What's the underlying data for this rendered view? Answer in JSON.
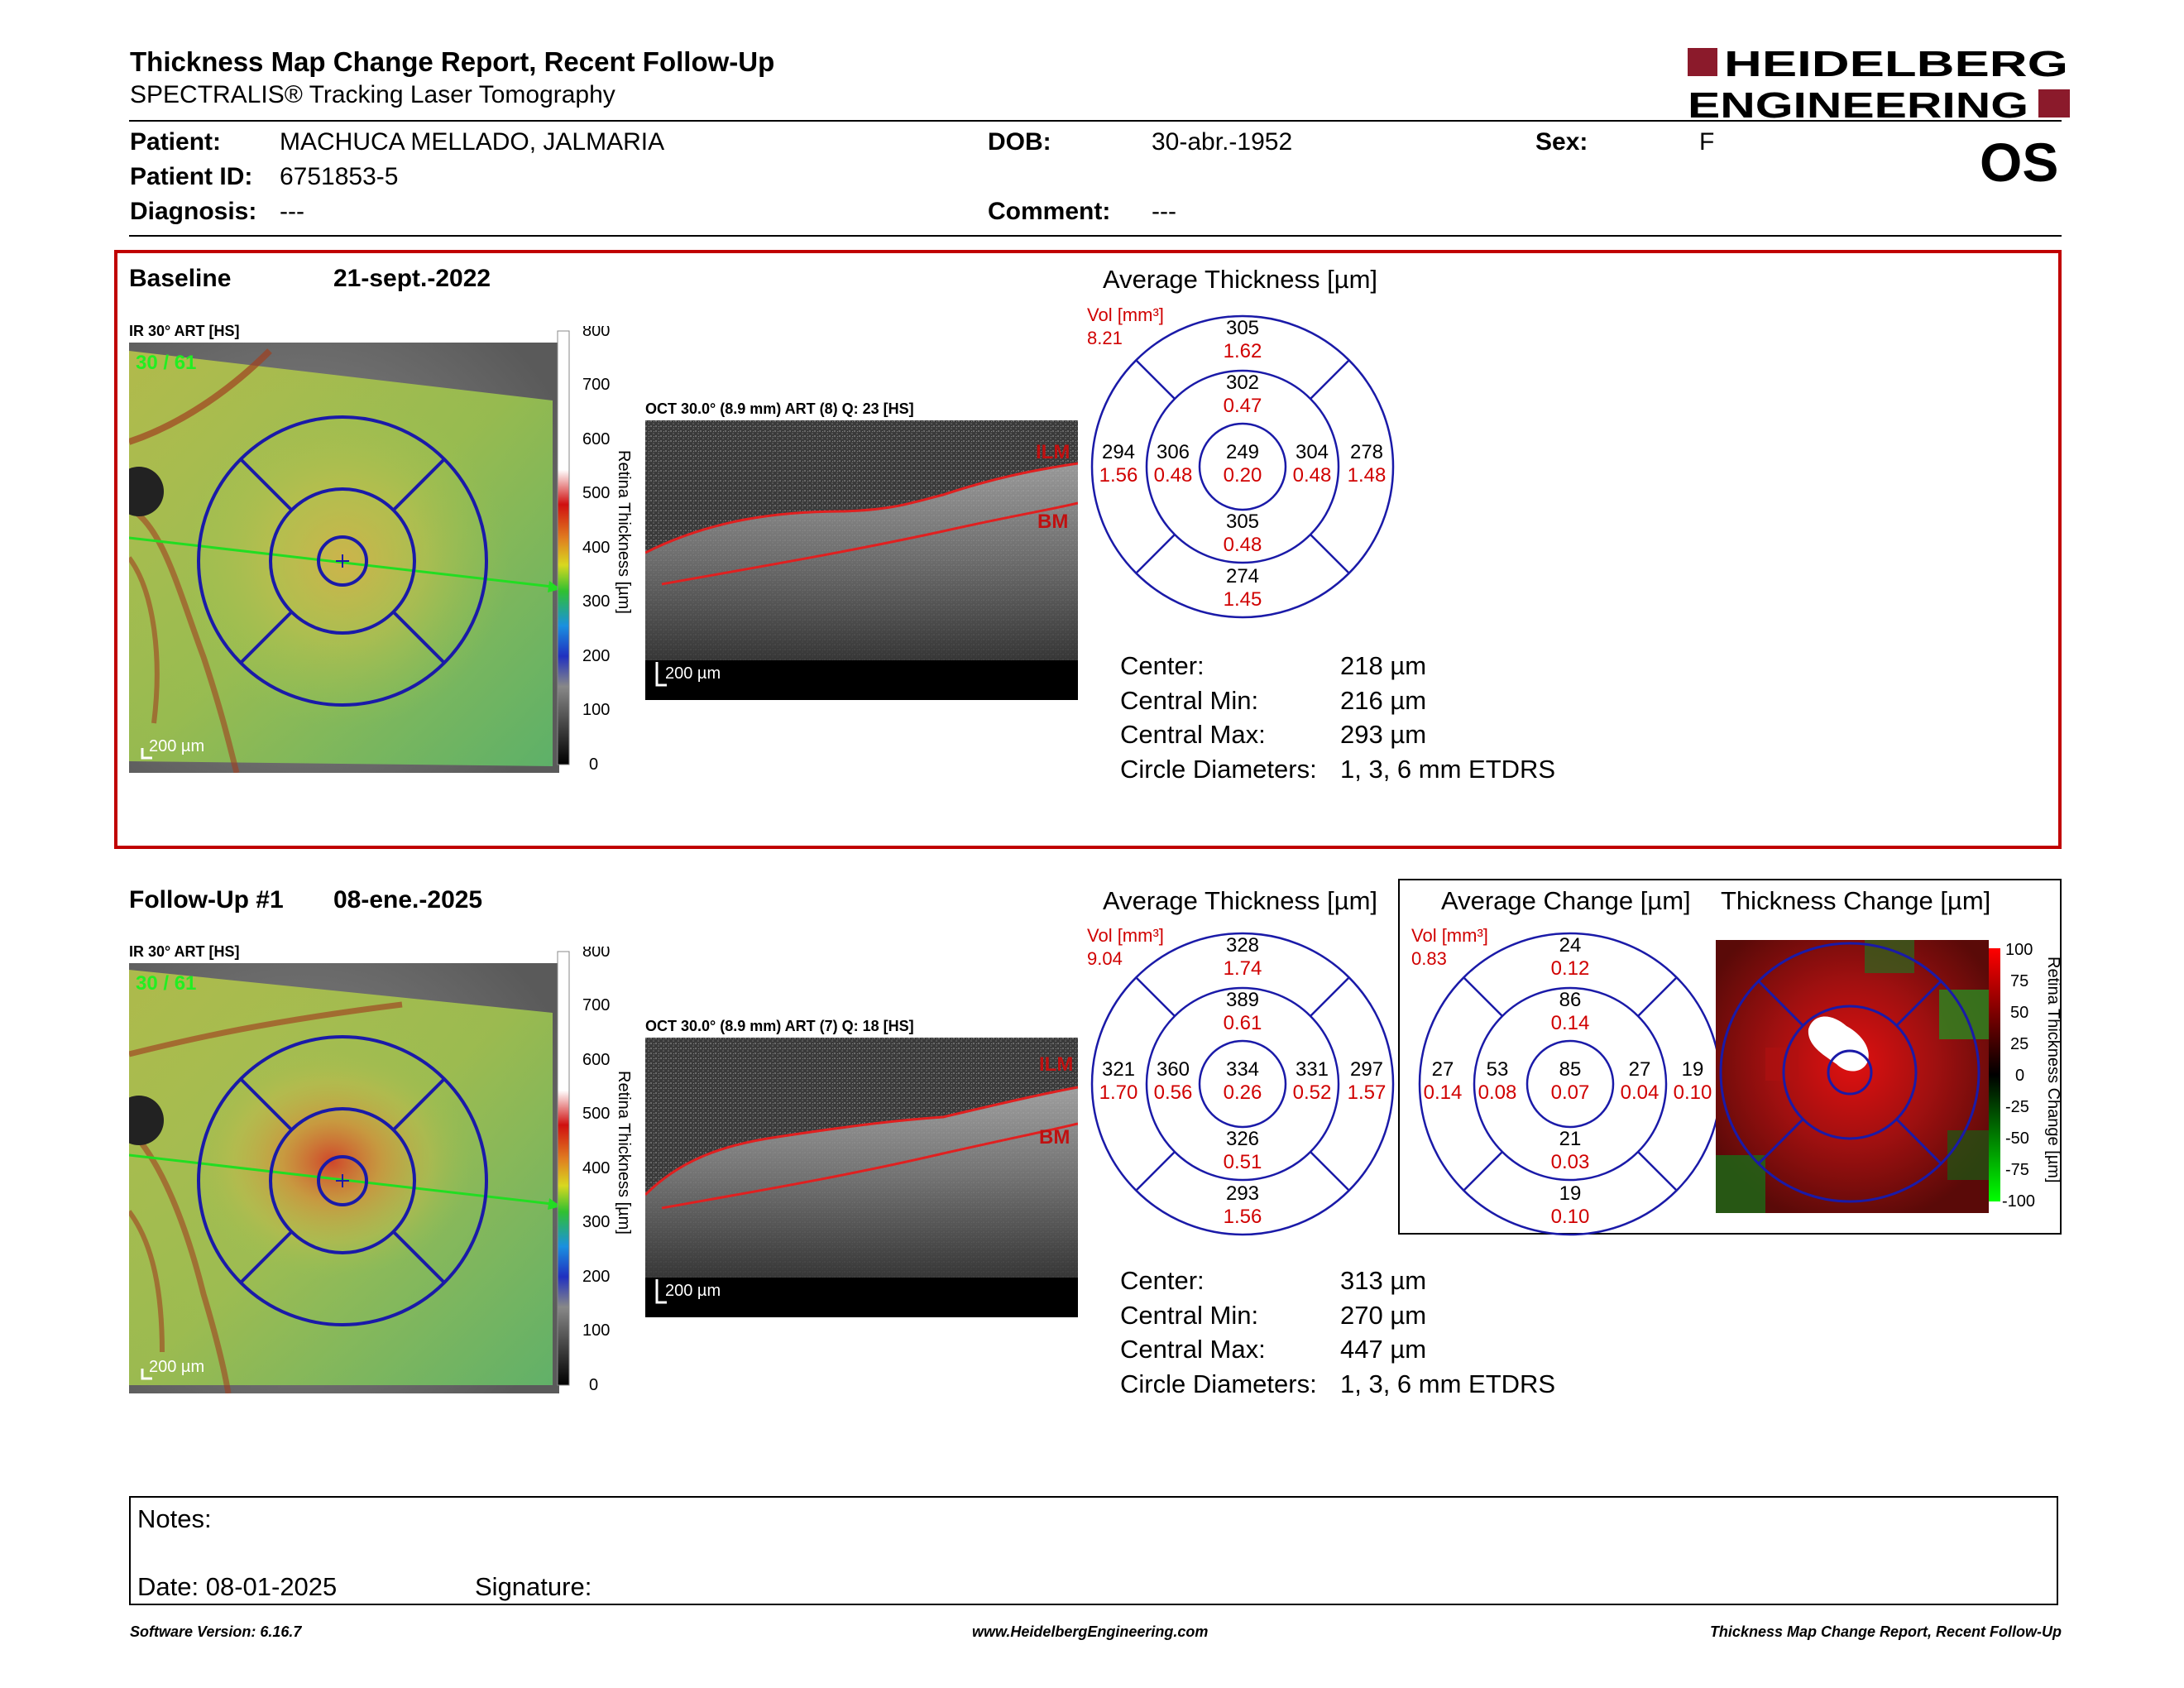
{
  "header": {
    "title": "Thickness Map Change Report, Recent Follow-Up",
    "subtitle": "SPECTRALIS® Tracking Laser Tomography",
    "logo_line1": "HEIDELBERG",
    "logo_line2": "ENGINEERING",
    "eye": "OS"
  },
  "patient": {
    "patient_label": "Patient:",
    "patient_value": "MACHUCA MELLADO, JALMARIA",
    "id_label": "Patient ID:",
    "id_value": "6751853-5",
    "diagnosis_label": "Diagnosis:",
    "diagnosis_value": "---",
    "dob_label": "DOB:",
    "dob_value": "30-abr.-1952",
    "comment_label": "Comment:",
    "comment_value": "---",
    "sex_label": "Sex:",
    "sex_value": "F"
  },
  "baseline": {
    "title": "Baseline",
    "date": "21-sept.-2022",
    "ir_label": "IR 30° ART [HS]",
    "ir_overlay": "30 / 61",
    "scale": "200 µm",
    "oct_label": "OCT 30.0° (8.9 mm) ART (8) Q: 23 [HS]",
    "ilm": "ILM",
    "bm": "BM",
    "colorbar_ticks": [
      "800",
      "700",
      "600",
      "500",
      "400",
      "300",
      "200",
      "100",
      "0"
    ],
    "colorbar_label": "Retina Thickness [µm]",
    "avg_title": "Average Thickness [µm]",
    "vol_label": "Vol [mm³]",
    "vol_total": "8.21",
    "grid": {
      "outer_top": [
        "305",
        "1.62"
      ],
      "inner_top": [
        "302",
        "0.47"
      ],
      "outer_left": [
        "294",
        "1.56"
      ],
      "inner_left": [
        "306",
        "0.48"
      ],
      "center": [
        "249",
        "0.20"
      ],
      "inner_right": [
        "304",
        "0.48"
      ],
      "outer_right": [
        "278",
        "1.48"
      ],
      "inner_bottom": [
        "305",
        "0.48"
      ],
      "outer_bottom": [
        "274",
        "1.45"
      ]
    },
    "stats": [
      {
        "label": "Center:",
        "value": "218 µm"
      },
      {
        "label": "Central Min:",
        "value": "216 µm"
      },
      {
        "label": "Central Max:",
        "value": "293 µm"
      },
      {
        "label": "Circle Diameters:",
        "value": "1, 3, 6 mm ETDRS"
      }
    ]
  },
  "followup": {
    "title": "Follow-Up #1",
    "date": "08-ene.-2025",
    "ir_label": "IR 30° ART [HS]",
    "ir_overlay": "30 / 61",
    "scale": "200 µm",
    "oct_label": "OCT 30.0° (8.9 mm) ART (7) Q: 18 [HS]",
    "ilm": "ILM",
    "bm": "BM",
    "colorbar_ticks": [
      "800",
      "700",
      "600",
      "500",
      "400",
      "300",
      "200",
      "100",
      "0"
    ],
    "colorbar_label": "Retina Thickness [µm]",
    "avg_title": "Average Thickness [µm]",
    "vol_label": "Vol [mm³]",
    "vol_total": "9.04",
    "grid": {
      "outer_top": [
        "328",
        "1.74"
      ],
      "inner_top": [
        "389",
        "0.61"
      ],
      "outer_left": [
        "321",
        "1.70"
      ],
      "inner_left": [
        "360",
        "0.56"
      ],
      "center": [
        "334",
        "0.26"
      ],
      "inner_right": [
        "331",
        "0.52"
      ],
      "outer_right": [
        "297",
        "1.57"
      ],
      "inner_bottom": [
        "326",
        "0.51"
      ],
      "outer_bottom": [
        "293",
        "1.56"
      ]
    },
    "stats": [
      {
        "label": "Center:",
        "value": "313 µm"
      },
      {
        "label": "Central Min:",
        "value": "270 µm"
      },
      {
        "label": "Central Max:",
        "value": "447 µm"
      },
      {
        "label": "Circle Diameters:",
        "value": "1, 3, 6 mm ETDRS"
      }
    ]
  },
  "change": {
    "avg_title": "Average Change [µm]",
    "map_title": "Thickness Change [µm]",
    "vol_label": "Vol [mm³]",
    "vol_total": "0.83",
    "grid": {
      "outer_top": [
        "24",
        "0.12"
      ],
      "inner_top": [
        "86",
        "0.14"
      ],
      "outer_left": [
        "27",
        "0.14"
      ],
      "inner_left": [
        "53",
        "0.08"
      ],
      "center": [
        "85",
        "0.07"
      ],
      "inner_right": [
        "27",
        "0.04"
      ],
      "outer_right": [
        "19",
        "0.10"
      ],
      "inner_bottom": [
        "21",
        "0.03"
      ],
      "outer_bottom": [
        "19",
        "0.10"
      ]
    },
    "colorbar_ticks": [
      "100",
      "75",
      "50",
      "25",
      "0",
      "-25",
      "-50",
      "-75",
      "-100"
    ],
    "colorbar_label": "Retina Thickness Change [µm]"
  },
  "notes": {
    "notes_label": "Notes:",
    "date_label": "Date: 08-01-2025",
    "signature_label": "Signature:"
  },
  "footer": {
    "software": "Software Version: 6.16.7",
    "website": "www.HeidelbergEngineering.com",
    "report": "Thickness Map Change Report, Recent Follow-Up"
  },
  "colors": {
    "accent_red": "#c00000",
    "grid_blue": "#1a1aa8",
    "value_red": "#d00000",
    "logo_red": "#8b1a2b"
  }
}
